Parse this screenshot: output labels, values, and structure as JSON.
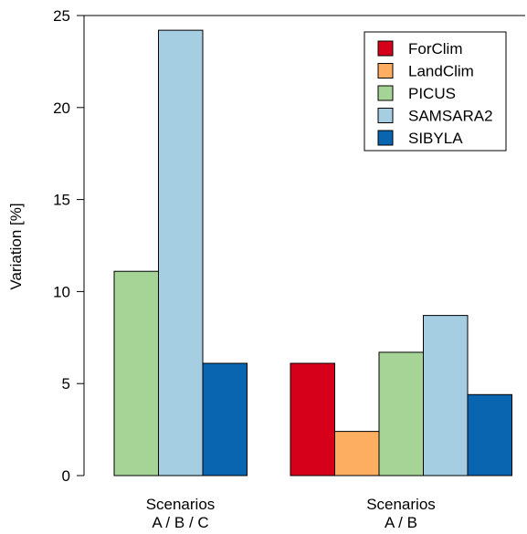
{
  "chart_data": {
    "type": "bar",
    "ylabel": "Variation [%]",
    "ylim": [
      0,
      25
    ],
    "yticks": [
      0,
      5,
      10,
      15,
      20,
      25
    ],
    "groups": [
      {
        "label_line1": "Scenarios",
        "label_line2": "A / B / C",
        "bars": [
          {
            "series": "PICUS",
            "value": 11.1
          },
          {
            "series": "SAMSARA2",
            "value": 24.2
          },
          {
            "series": "SIBYLA",
            "value": 6.1
          }
        ]
      },
      {
        "label_line1": "Scenarios",
        "label_line2": "A / B",
        "bars": [
          {
            "series": "ForClim",
            "value": 6.1
          },
          {
            "series": "LandClim",
            "value": 2.4
          },
          {
            "series": "PICUS",
            "value": 6.7
          },
          {
            "series": "SAMSARA2",
            "value": 8.7
          },
          {
            "series": "SIBYLA",
            "value": 4.4
          }
        ]
      }
    ],
    "series": [
      {
        "name": "ForClim",
        "color": "#d7001a"
      },
      {
        "name": "LandClim",
        "color": "#fdae61"
      },
      {
        "name": "PICUS",
        "color": "#a6d496"
      },
      {
        "name": "SAMSARA2",
        "color": "#a6cee3"
      },
      {
        "name": "SIBYLA",
        "color": "#0a65b0"
      }
    ],
    "legend_position": "top-right",
    "grid": false
  }
}
